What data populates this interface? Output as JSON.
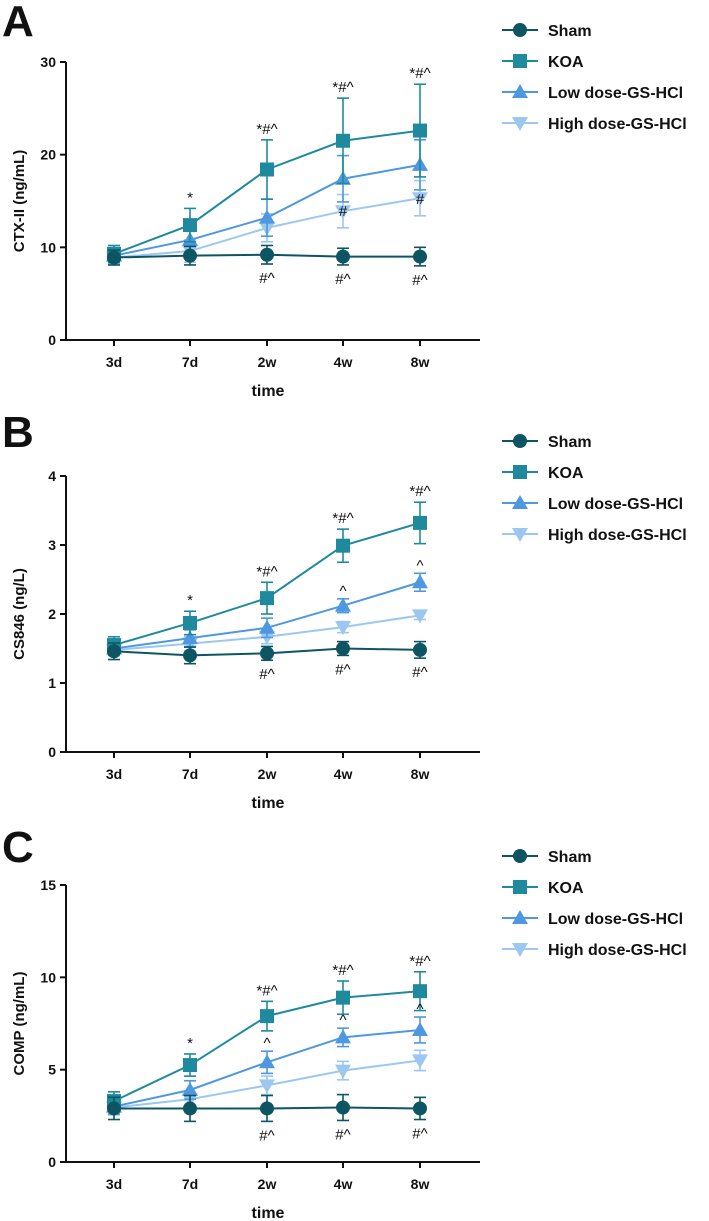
{
  "colors": {
    "sham": "#0d5563",
    "koa": "#1f8a9e",
    "low": "#4d98e0",
    "high": "#9cc7f0",
    "axis": "#111111",
    "text": "#111111"
  },
  "legend_labels": [
    "Sham",
    "KOA",
    "Low dose-GS-HCl",
    "High dose-GS-HCl"
  ],
  "chart_data": [
    {
      "panel": "A",
      "type": "line",
      "ylabel": "CTX-II (ng/mL)",
      "xlabel": "time",
      "categories": [
        "3d",
        "7d",
        "2w",
        "4w",
        "8w"
      ],
      "ylim": [
        0,
        30
      ],
      "yticks": [
        0,
        10,
        20,
        30
      ],
      "series": [
        {
          "name": "Sham",
          "values": [
            8.9,
            9.1,
            9.2,
            9.0,
            9.0
          ],
          "errors": [
            0.8,
            1.0,
            1.0,
            0.9,
            1.0
          ]
        },
        {
          "name": "KOA",
          "values": [
            9.3,
            12.4,
            18.4,
            21.5,
            22.6
          ],
          "errors": [
            0.9,
            1.8,
            3.2,
            4.6,
            5.0
          ]
        },
        {
          "name": "Low dose-GS-HCl",
          "values": [
            9.1,
            10.8,
            13.2,
            17.4,
            18.9
          ],
          "errors": [
            0.8,
            1.5,
            2.0,
            2.5,
            2.7
          ]
        },
        {
          "name": "High dose-GS-HCl",
          "values": [
            8.9,
            9.6,
            12.1,
            13.9,
            15.3
          ],
          "errors": [
            0.8,
            1.2,
            1.5,
            1.8,
            1.9
          ]
        }
      ],
      "annotations_above": [
        {
          "category": "7d",
          "text": "*"
        },
        {
          "category": "2w",
          "text": "*#^"
        },
        {
          "category": "4w",
          "text": "*#^"
        },
        {
          "category": "8w",
          "text": "*#^"
        }
      ],
      "annotations_mid": [
        {
          "category": "4w",
          "text": "#"
        },
        {
          "category": "8w",
          "text": "#"
        }
      ],
      "annotations_below": [
        {
          "category": "2w",
          "text": "#^"
        },
        {
          "category": "4w",
          "text": "#^"
        },
        {
          "category": "8w",
          "text": "#^"
        }
      ]
    },
    {
      "panel": "B",
      "type": "line",
      "ylabel": "CS846 (ng/L)",
      "xlabel": "time",
      "categories": [
        "3d",
        "7d",
        "2w",
        "4w",
        "8w"
      ],
      "ylim": [
        0,
        4
      ],
      "yticks": [
        0,
        1,
        2,
        3,
        4
      ],
      "series": [
        {
          "name": "Sham",
          "values": [
            1.46,
            1.4,
            1.43,
            1.5,
            1.48
          ],
          "errors": [
            0.12,
            0.12,
            0.1,
            0.1,
            0.12
          ]
        },
        {
          "name": "KOA",
          "values": [
            1.55,
            1.87,
            2.23,
            2.99,
            3.32
          ],
          "errors": [
            0.12,
            0.17,
            0.23,
            0.24,
            0.3
          ]
        },
        {
          "name": "Low dose-GS-HCl",
          "values": [
            1.5,
            1.65,
            1.8,
            2.12,
            2.46
          ],
          "errors": [
            0.1,
            0.12,
            0.14,
            0.1,
            0.13
          ]
        },
        {
          "name": "High dose-GS-HCl",
          "values": [
            1.48,
            1.57,
            1.67,
            1.81,
            1.98
          ],
          "errors": [
            0.08,
            0.1,
            0.1,
            0.08,
            0.06
          ]
        }
      ],
      "annotations_above": [
        {
          "category": "7d",
          "text": "*"
        },
        {
          "category": "2w",
          "text": "*#^"
        },
        {
          "category": "4w",
          "text": "*#^"
        },
        {
          "category": "8w",
          "text": "*#^"
        }
      ],
      "annotations_mid": [
        {
          "category": "4w",
          "text": "^"
        },
        {
          "category": "8w",
          "text": "^"
        }
      ],
      "annotations_below": [
        {
          "category": "2w",
          "text": "#^"
        },
        {
          "category": "4w",
          "text": "#^"
        },
        {
          "category": "8w",
          "text": "#^"
        }
      ]
    },
    {
      "panel": "C",
      "type": "line",
      "ylabel": "COMP (ng/mL)",
      "xlabel": "time",
      "categories": [
        "3d",
        "7d",
        "2w",
        "4w",
        "8w"
      ],
      "ylim": [
        0,
        15
      ],
      "yticks": [
        0,
        5,
        10,
        15
      ],
      "series": [
        {
          "name": "Sham",
          "values": [
            2.9,
            2.9,
            2.9,
            2.95,
            2.9
          ],
          "errors": [
            0.6,
            0.7,
            0.7,
            0.7,
            0.6
          ]
        },
        {
          "name": "KOA",
          "values": [
            3.3,
            5.25,
            7.9,
            8.9,
            9.25
          ],
          "errors": [
            0.5,
            0.6,
            0.8,
            0.9,
            1.05
          ]
        },
        {
          "name": "Low dose-GS-HCl",
          "values": [
            3.0,
            3.9,
            5.4,
            6.75,
            7.15
          ],
          "errors": [
            0.4,
            0.5,
            0.6,
            0.5,
            0.7
          ]
        },
        {
          "name": "High dose-GS-HCl",
          "values": [
            2.95,
            3.4,
            4.15,
            4.95,
            5.5
          ],
          "errors": [
            0.4,
            0.4,
            0.5,
            0.5,
            0.55
          ]
        }
      ],
      "annotations_above": [
        {
          "category": "7d",
          "text": "*"
        },
        {
          "category": "2w",
          "text": "*#^"
        },
        {
          "category": "4w",
          "text": "*#^"
        },
        {
          "category": "8w",
          "text": "*#^"
        }
      ],
      "annotations_mid": [
        {
          "category": "2w",
          "text": "^"
        },
        {
          "category": "4w",
          "text": "^"
        },
        {
          "category": "8w",
          "text": "^"
        }
      ],
      "annotations_below": [
        {
          "category": "2w",
          "text": "#^"
        },
        {
          "category": "4w",
          "text": "#^"
        },
        {
          "category": "8w",
          "text": "#^"
        }
      ]
    }
  ]
}
